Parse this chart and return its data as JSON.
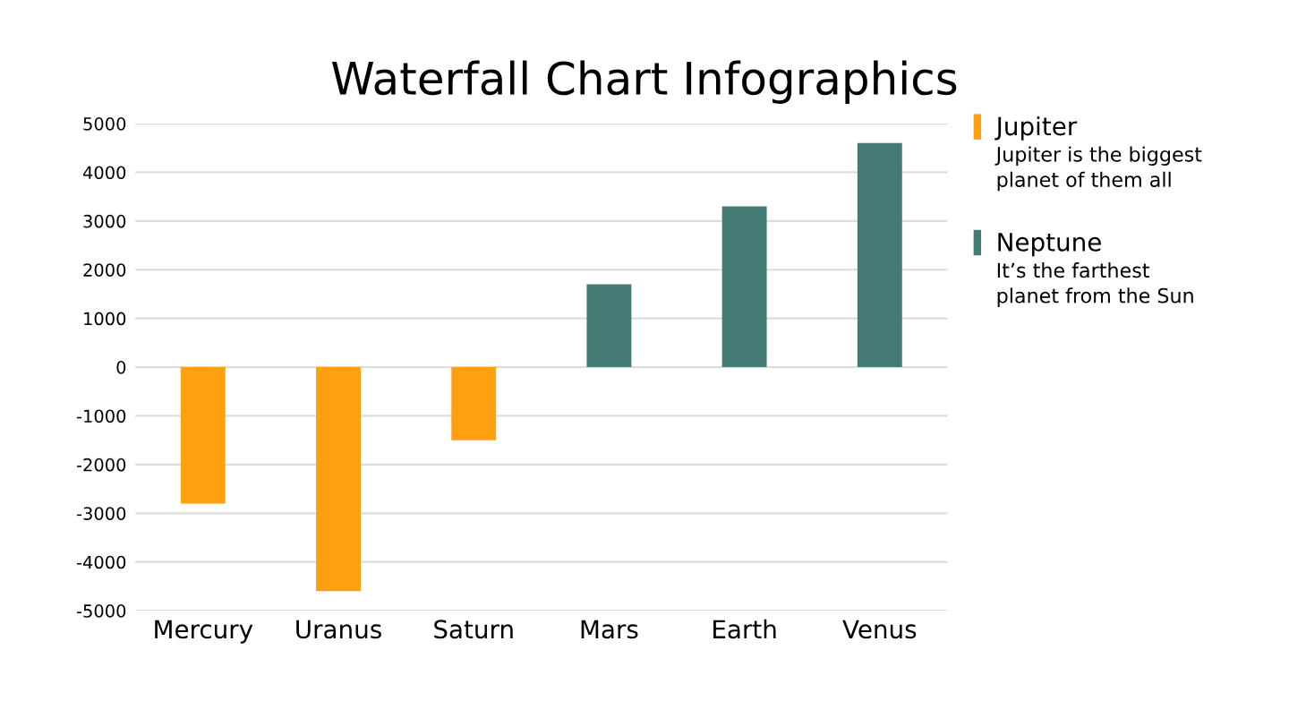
{
  "chart_data": {
    "type": "bar",
    "title": "Waterfall Chart Infographics",
    "categories": [
      "Mercury",
      "Uranus",
      "Saturn",
      "Mars",
      "Earth",
      "Venus"
    ],
    "series": [
      {
        "name": "Jupiter",
        "color": "#ffa010",
        "values": [
          -2800,
          -4600,
          -1500,
          null,
          null,
          null
        ]
      },
      {
        "name": "Neptune",
        "color": "#457b75",
        "values": [
          null,
          null,
          null,
          1700,
          3300,
          4600
        ]
      }
    ],
    "ylim": [
      -5000,
      5000
    ],
    "yticks": [
      -5000,
      -4000,
      -3000,
      -2000,
      -1000,
      0,
      1000,
      2000,
      3000,
      4000,
      5000
    ],
    "grid": "y",
    "legend": "top right",
    "annotations": [
      "Jupiter is the biggest\nplanet of them all",
      "It’s the farthest\nplanet from the Sun"
    ]
  }
}
